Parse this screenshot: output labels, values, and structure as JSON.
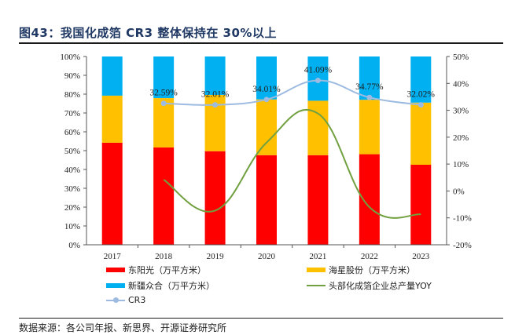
{
  "title": "图43：我国化成箔 CR3 整体保持在 30%以上",
  "source": "数据来源：各公司年报、新思界、开源证券研究所",
  "chart_data": {
    "type": "bar",
    "subtype": "stacked-percent-bar-with-lines",
    "title": "图43：我国化成箔 CR3 整体保持在 30%以上",
    "categories": [
      "2017",
      "2018",
      "2019",
      "2020",
      "2021",
      "2022",
      "2023"
    ],
    "left_axis": {
      "min": 0,
      "max": 100,
      "step": 10,
      "ticks": [
        "0%",
        "10%",
        "20%",
        "30%",
        "40%",
        "50%",
        "60%",
        "70%",
        "80%",
        "90%",
        "100%"
      ]
    },
    "right_axis": {
      "min": -20,
      "max": 50,
      "step": 10,
      "ticks": [
        "-20%",
        "-10%",
        "0%",
        "10%",
        "20%",
        "30%",
        "40%",
        "50%"
      ]
    },
    "grid": false,
    "legend_position": "bottom",
    "series": [
      {
        "name": "东阳光（万平方米）",
        "kind": "bar",
        "axis": "left",
        "color": "#ff0000",
        "values": [
          54.2,
          51.7,
          49.7,
          47.6,
          47.6,
          48.1,
          42.5
        ]
      },
      {
        "name": "海星股份（万平方米）",
        "kind": "bar",
        "axis": "left",
        "color": "#ffc000",
        "values": [
          25.0,
          26.2,
          29.9,
          29.6,
          28.9,
          28.9,
          33.0
        ]
      },
      {
        "name": "新疆众合（万平方米）",
        "kind": "bar",
        "axis": "left",
        "color": "#00b0f0",
        "values": [
          20.8,
          22.1,
          20.4,
          22.8,
          23.5,
          23.0,
          24.5
        ]
      },
      {
        "name": "头部化成箔企业总产量YOY",
        "kind": "line",
        "axis": "right",
        "color": "#70a040",
        "smooth": true,
        "values": [
          null,
          4.2,
          -7.3,
          18.0,
          28.8,
          -6.0,
          -8.7
        ]
      },
      {
        "name": "CR3",
        "kind": "line-markers",
        "axis": "right",
        "color": "#9dbbe0",
        "smooth": true,
        "values": [
          null,
          32.59,
          32.01,
          34.01,
          41.09,
          34.77,
          32.02
        ],
        "labels": [
          null,
          "32.59%",
          "32.01%",
          "34.01%",
          "41.09%",
          "34.77%",
          "32.02%"
        ]
      }
    ]
  }
}
